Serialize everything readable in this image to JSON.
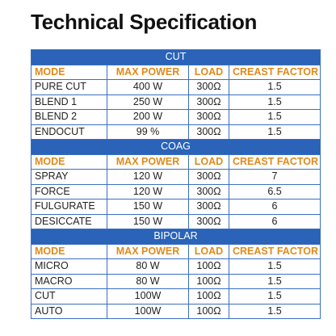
{
  "title": "Technical Specification",
  "sections": [
    {
      "name": "CUT",
      "header": [
        "MODE",
        "MAX POWER",
        "LOAD",
        "CREAST FACTOR"
      ],
      "rows": [
        [
          "PURE CUT",
          "400 W",
          "300Ω",
          "1.5"
        ],
        [
          "BLEND 1",
          "250 W",
          "300Ω",
          "1.5"
        ],
        [
          "BLEND 2",
          "200 W",
          "300Ω",
          "1.5"
        ],
        [
          "ENDOCUT",
          "99 %",
          "300Ω",
          "1.5"
        ]
      ]
    },
    {
      "name": "COAG",
      "header": [
        "MODE",
        "MAX POWER",
        "LOAD",
        "CREAST FACTOR"
      ],
      "rows": [
        [
          "SPRAY",
          "120 W",
          "300Ω",
          "7"
        ],
        [
          "FORCE",
          "120 W",
          "300Ω",
          "6.5"
        ],
        [
          "FULGURATE",
          "150 W",
          "300Ω",
          "6"
        ],
        [
          "DESICCATE",
          "150 W",
          "300Ω",
          "6"
        ]
      ]
    },
    {
      "name": "BIPOLAR",
      "header": [
        "MODE",
        "MAX POWER",
        "LOAD",
        "CREAST FACTOR"
      ],
      "rows": [
        [
          "MICRO",
          "80 W",
          "100Ω",
          "1.5"
        ],
        [
          "MACRO",
          "80 W",
          "100Ω",
          "1.5"
        ],
        [
          "CUT",
          "100W",
          "100Ω",
          "1.5"
        ],
        [
          "AUTO",
          "100W",
          "100Ω",
          "1.5"
        ]
      ]
    }
  ]
}
